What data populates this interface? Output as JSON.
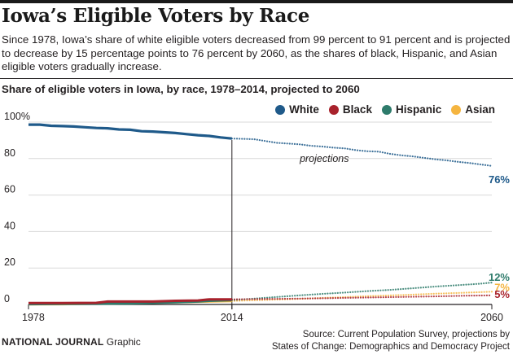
{
  "title": "Iowa’s Eligible Voters by Race",
  "subtitle": "Since 1978, Iowa’s share of white eligible voters decreased from 99 percent to 91 percent and is projected to decrease by 15 percentage points to 76 percent by 2060, as the shares of black, Hispanic, and Asian eligible voters gradually increase.",
  "footer": {
    "brand": "NATIONAL JOURNAL",
    "brand_suffix": "Graphic",
    "source_line1": "Source: Current Population Survey, projections by",
    "source_line2": "States of Change: Demographics and Democracy Project"
  },
  "chart_data": {
    "type": "line",
    "title": "Share of eligible voters in Iowa, by race, 1978–2014, projected to 2060",
    "ylim": [
      0,
      100
    ],
    "xlim": [
      1978,
      2060
    ],
    "y_ticks": [
      "100%",
      "80",
      "60",
      "40",
      "20",
      "0"
    ],
    "y_tick_values": [
      100,
      80,
      60,
      40,
      20,
      0
    ],
    "x_ticks": [
      "1978",
      "2014",
      "2060"
    ],
    "x_tick_values": [
      1978,
      2014,
      2060
    ],
    "projection_start": 2014,
    "annotation": "projections",
    "legend": [
      {
        "name": "White",
        "color": "#1f5a8a"
      },
      {
        "name": "Black",
        "color": "#a8222c"
      },
      {
        "name": "Hispanic",
        "color": "#2e7b6b"
      },
      {
        "name": "Asian",
        "color": "#f5b540"
      }
    ],
    "end_labels": [
      {
        "series": "White",
        "text": "76%",
        "color": "#1f5a8a"
      },
      {
        "series": "Hispanic",
        "text": "12%",
        "color": "#2e7b6b"
      },
      {
        "series": "Asian",
        "text": "7%",
        "color": "#f5b540"
      },
      {
        "series": "Black",
        "text": "5%",
        "color": "#a8222c"
      }
    ],
    "series": [
      {
        "name": "White",
        "color": "#1f5a8a",
        "historical": {
          "x": [
            1978,
            1980,
            1982,
            1984,
            1986,
            1988,
            1990,
            1992,
            1994,
            1996,
            1998,
            2000,
            2002,
            2004,
            2006,
            2008,
            2010,
            2012,
            2014
          ],
          "y": [
            98.6,
            98.6,
            98,
            97.8,
            97.6,
            97.2,
            96.8,
            96.6,
            96,
            95.8,
            95,
            94.8,
            94.4,
            94,
            93.4,
            92.8,
            92.4,
            91.6,
            91
          ]
        },
        "projected": {
          "x": [
            2014,
            2016,
            2018,
            2020,
            2022,
            2024,
            2026,
            2028,
            2030,
            2032,
            2034,
            2036,
            2038,
            2040,
            2042,
            2044,
            2046,
            2048,
            2050,
            2052,
            2054,
            2056,
            2058,
            2060
          ],
          "y": [
            91,
            90.8,
            90.6,
            89.6,
            88.6,
            88.2,
            87.8,
            87,
            86.6,
            86,
            85.6,
            84.6,
            84,
            83.8,
            82.6,
            81.8,
            81.2,
            80.4,
            79.6,
            79,
            78.2,
            77.6,
            76.8,
            76
          ]
        }
      },
      {
        "name": "Black",
        "color": "#a8222c",
        "historical": {
          "x": [
            1978,
            1984,
            1990,
            1992,
            1996,
            2000,
            2004,
            2008,
            2010,
            2014
          ],
          "y": [
            0.8,
            0.8,
            0.9,
            1.6,
            1.6,
            1.6,
            2.0,
            2.2,
            2.8,
            2.8
          ]
        },
        "projected": {
          "x": [
            2014,
            2020,
            2026,
            2032,
            2038,
            2044,
            2050,
            2056,
            2060
          ],
          "y": [
            2.8,
            3.0,
            3.2,
            3.5,
            3.8,
            4.1,
            4.4,
            4.8,
            5
          ]
        }
      },
      {
        "name": "Hispanic",
        "color": "#2e7b6b",
        "historical": {
          "x": [
            1978,
            1984,
            1990,
            1996,
            2000,
            2004,
            2008,
            2010,
            2014
          ],
          "y": [
            0.2,
            0.3,
            0.4,
            0.6,
            0.9,
            1.2,
            1.6,
            2.0,
            2.4
          ]
        },
        "projected": {
          "x": [
            2014,
            2018,
            2022,
            2026,
            2030,
            2034,
            2038,
            2042,
            2046,
            2050,
            2054,
            2058,
            2060
          ],
          "y": [
            2.4,
            3.2,
            4.1,
            5.0,
            5.8,
            6.5,
            7.3,
            8.0,
            8.9,
            9.8,
            10.6,
            11.4,
            12
          ]
        }
      },
      {
        "name": "Asian",
        "color": "#f5b540",
        "historical": {
          "x": [
            1978,
            1984,
            1988,
            1992,
            1996,
            2000,
            2004,
            2008,
            2012,
            2014
          ],
          "y": [
            0.1,
            0.2,
            0.4,
            0.6,
            0.8,
            1.0,
            1.2,
            1.5,
            1.8,
            1.9
          ]
        },
        "projected": {
          "x": [
            2014,
            2020,
            2026,
            2032,
            2038,
            2044,
            2050,
            2056,
            2060
          ],
          "y": [
            1.9,
            2.5,
            3.1,
            3.8,
            4.5,
            5.2,
            5.9,
            6.5,
            7
          ]
        }
      }
    ]
  }
}
